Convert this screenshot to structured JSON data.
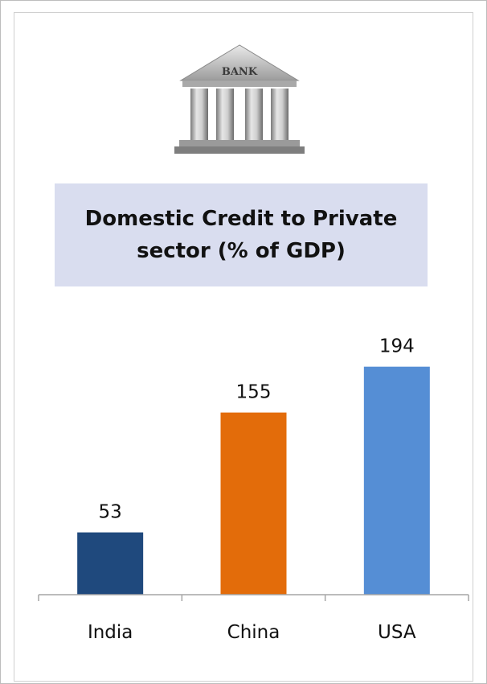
{
  "logo": {
    "text": "BANK",
    "icon": "bank-building-icon"
  },
  "chart_data": {
    "type": "bar",
    "title": "Domestic Credit to Private sector (% of GDP)",
    "categories": [
      "India",
      "China",
      "USA"
    ],
    "values": [
      53,
      155,
      194
    ],
    "colors": [
      "#1f497d",
      "#e36c0a",
      "#558ed5"
    ],
    "ylim": [
      0,
      215
    ],
    "xlabel": "",
    "ylabel": "",
    "grid": false,
    "legend": "none"
  }
}
